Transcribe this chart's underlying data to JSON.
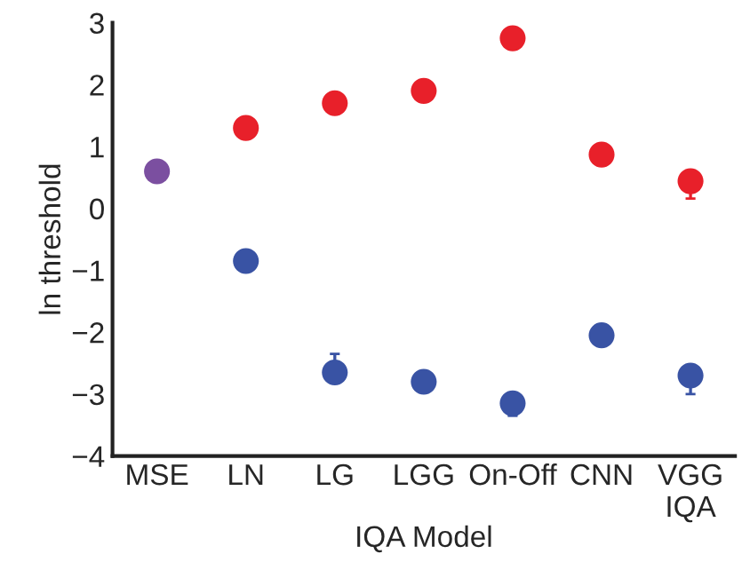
{
  "chart_data": {
    "type": "scatter",
    "xlabel": "IQA Model",
    "ylabel": "ln threshold",
    "categories": [
      "MSE",
      "LN",
      "LG",
      "LGG",
      "On-Off",
      "CNN",
      "VGG\nIQA"
    ],
    "ylim": [
      -4,
      3
    ],
    "yticks": [
      -4,
      -3,
      -2,
      -1,
      0,
      1,
      2,
      3
    ],
    "grid": false,
    "marker": "circle",
    "series": [
      {
        "color": "#7b4fa0",
        "values": [
          0.6,
          null,
          null,
          null,
          null,
          null,
          null
        ]
      },
      {
        "color": "#e8202a",
        "values": [
          null,
          1.3,
          1.7,
          1.9,
          2.75,
          0.87,
          0.44
        ],
        "errors": [
          null,
          null,
          null,
          null,
          null,
          null,
          [
            0.16,
            0.44
          ]
        ]
      },
      {
        "color": "#3953a4",
        "values": [
          null,
          -0.85,
          -2.65,
          -2.8,
          -3.15,
          -2.05,
          -2.7
        ],
        "errors": [
          null,
          null,
          [
            -2.65,
            -2.35
          ],
          null,
          [
            -3.35,
            -3.15
          ],
          null,
          [
            -3.0,
            -2.7
          ]
        ]
      }
    ]
  }
}
